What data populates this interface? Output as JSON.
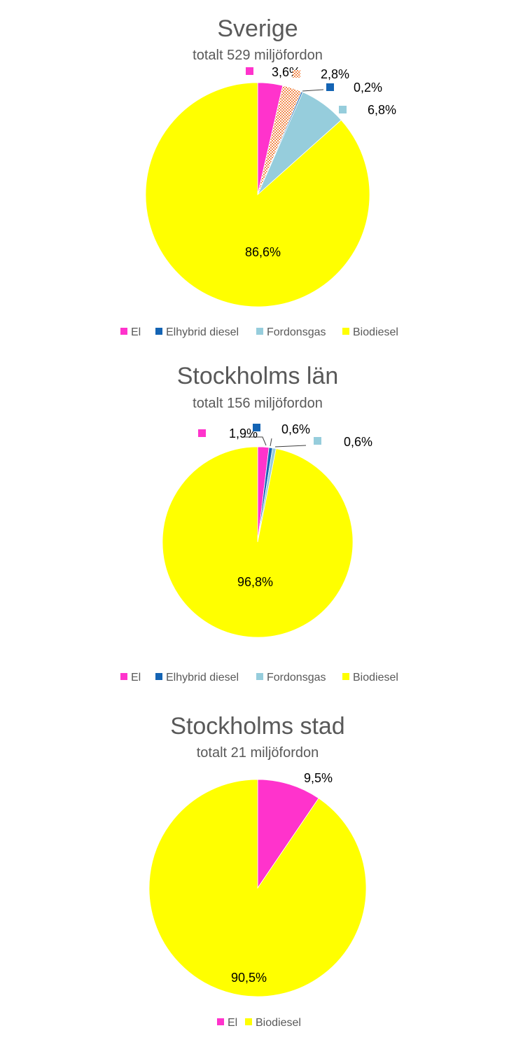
{
  "chart_data": [
    {
      "type": "pie",
      "title": "Sverige",
      "subtitle": "totalt 529 miljöfordon",
      "slices": [
        {
          "label": "El",
          "value": 3.6,
          "display": "3,6%",
          "color": "#ff33cc"
        },
        {
          "label": "",
          "value": 2.8,
          "display": "2,8%",
          "color": "#f28c50",
          "pattern": "hatched"
        },
        {
          "label": "Elhybrid diesel",
          "value": 0.2,
          "display": "0,2%",
          "color": "#1464b4"
        },
        {
          "label": "Fordonsgas",
          "value": 6.8,
          "display": "6,8%",
          "color": "#96cddc"
        },
        {
          "label": "Biodiesel",
          "value": 86.6,
          "display": "86,6%",
          "color": "#ffff00"
        }
      ],
      "legend": [
        "El",
        "Elhybrid diesel",
        "Fordonsgas",
        "Biodiesel"
      ],
      "legend_position": "bottom"
    },
    {
      "type": "pie",
      "title": "Stockholms län",
      "subtitle": "totalt 156 miljöfordon",
      "slices": [
        {
          "label": "El",
          "value": 1.9,
          "display": "1,9%",
          "color": "#ff33cc"
        },
        {
          "label": "Elhybrid diesel",
          "value": 0.6,
          "display": "0,6%",
          "color": "#1464b4"
        },
        {
          "label": "Fordonsgas",
          "value": 0.6,
          "display": "0,6%",
          "color": "#96cddc"
        },
        {
          "label": "Biodiesel",
          "value": 96.8,
          "display": "96,8%",
          "color": "#ffff00"
        }
      ],
      "legend": [
        "El",
        "Elhybrid diesel",
        "Fordonsgas",
        "Biodiesel"
      ],
      "legend_position": "bottom"
    },
    {
      "type": "pie",
      "title": "Stockholms stad",
      "subtitle": "totalt 21 miljöfordon",
      "slices": [
        {
          "label": "El",
          "value": 9.5,
          "display": "9,5%",
          "color": "#ff33cc"
        },
        {
          "label": "Biodiesel",
          "value": 90.5,
          "display": "90,5%",
          "color": "#ffff00"
        }
      ],
      "legend": [
        "El",
        "Biodiesel"
      ],
      "legend_position": "bottom"
    }
  ]
}
